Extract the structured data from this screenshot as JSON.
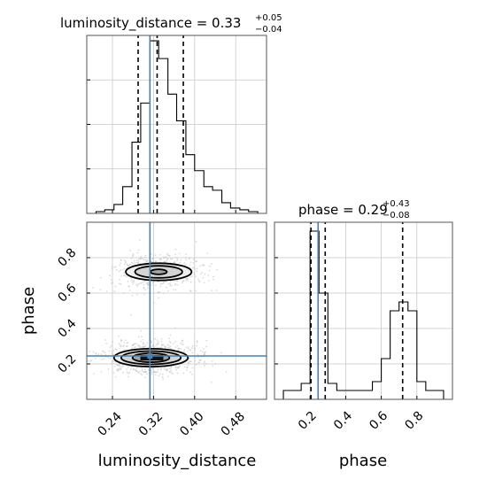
{
  "chart_data": {
    "type": "corner",
    "parameters": [
      "luminosity_distance",
      "phase"
    ],
    "truths": {
      "luminosity_distance": 0.313,
      "phase": 0.245
    },
    "grid": true,
    "panels": {
      "luminosity_distance_hist": {
        "title": {
          "main": "luminosity_distance = 0.33",
          "sup": "+0.05",
          "sub": "−0.04"
        },
        "xlim": [
          0.19,
          0.54
        ],
        "ylim": [
          0,
          1
        ],
        "quantiles": [
          0.29,
          0.327,
          0.378
        ],
        "bin_edges": [
          0.19,
          0.208,
          0.225,
          0.243,
          0.26,
          0.278,
          0.295,
          0.313,
          0.33,
          0.348,
          0.365,
          0.383,
          0.4,
          0.418,
          0.435,
          0.453,
          0.47,
          0.488,
          0.505,
          0.523,
          0.54
        ],
        "counts": [
          0.0,
          0.01,
          0.02,
          0.05,
          0.15,
          0.4,
          0.62,
          0.97,
          0.87,
          0.67,
          0.52,
          0.33,
          0.24,
          0.15,
          0.13,
          0.06,
          0.03,
          0.02,
          0.01,
          0.0
        ],
        "yticks": [
          0.25,
          0.5,
          0.75
        ],
        "xticks": [
          0.24,
          0.32,
          0.4,
          0.48
        ]
      },
      "phase_hist": {
        "title": {
          "main": "phase = 0.29",
          "sup": "+0.43",
          "sub": "−0.08"
        },
        "xlim": [
          0.0,
          1.0
        ],
        "ylim": [
          0,
          1
        ],
        "quantiles": [
          0.205,
          0.285,
          0.72
        ],
        "bin_edges": [
          0.0,
          0.05,
          0.1,
          0.15,
          0.2,
          0.25,
          0.3,
          0.35,
          0.4,
          0.45,
          0.5,
          0.55,
          0.6,
          0.65,
          0.7,
          0.75,
          0.8,
          0.85,
          0.9,
          0.95,
          1.0
        ],
        "counts": [
          0.0,
          0.05,
          0.05,
          0.09,
          0.95,
          0.6,
          0.09,
          0.05,
          0.05,
          0.05,
          0.05,
          0.1,
          0.23,
          0.5,
          0.55,
          0.5,
          0.1,
          0.05,
          0.05,
          0.0
        ],
        "yticks": [
          0.2,
          0.4,
          0.6,
          0.8
        ],
        "xticks": [
          0.2,
          0.4,
          0.6,
          0.8
        ],
        "xtick_labels": [
          "0.2",
          "0.4",
          "0.6",
          "0.8"
        ]
      },
      "joint": {
        "xlim": [
          0.19,
          0.54
        ],
        "ylim": [
          0.0,
          1.0
        ],
        "xticks": [
          0.24,
          0.32,
          0.4,
          0.48
        ],
        "xtick_labels": [
          "0.24",
          "0.32",
          "0.40",
          "0.48"
        ],
        "yticks": [
          0.2,
          0.4,
          0.6,
          0.8
        ],
        "ytick_labels": [
          "0.2",
          "0.4",
          "0.6",
          "0.8"
        ],
        "xlabel": "luminosity_distance",
        "ylabel": "phase",
        "modes": [
          {
            "cx": 0.33,
            "cy": 0.72,
            "sx": 0.038,
            "sy": 0.045,
            "weight": 0.4,
            "contours": [
              {
                "rx": 0.064,
                "ry": 0.088
              },
              {
                "rx": 0.046,
                "ry": 0.062
              },
              {
                "rx": 0.016,
                "ry": 0.026
              }
            ]
          },
          {
            "cx": 0.315,
            "cy": 0.235,
            "sx": 0.04,
            "sy": 0.04,
            "weight": 0.6,
            "contours": [
              {
                "rx": 0.072,
                "ry": 0.092
              },
              {
                "rx": 0.058,
                "ry": 0.068
              },
              {
                "rx": 0.036,
                "ry": 0.046
              }
            ]
          }
        ]
      }
    },
    "bottom_axis_label": "phase"
  }
}
